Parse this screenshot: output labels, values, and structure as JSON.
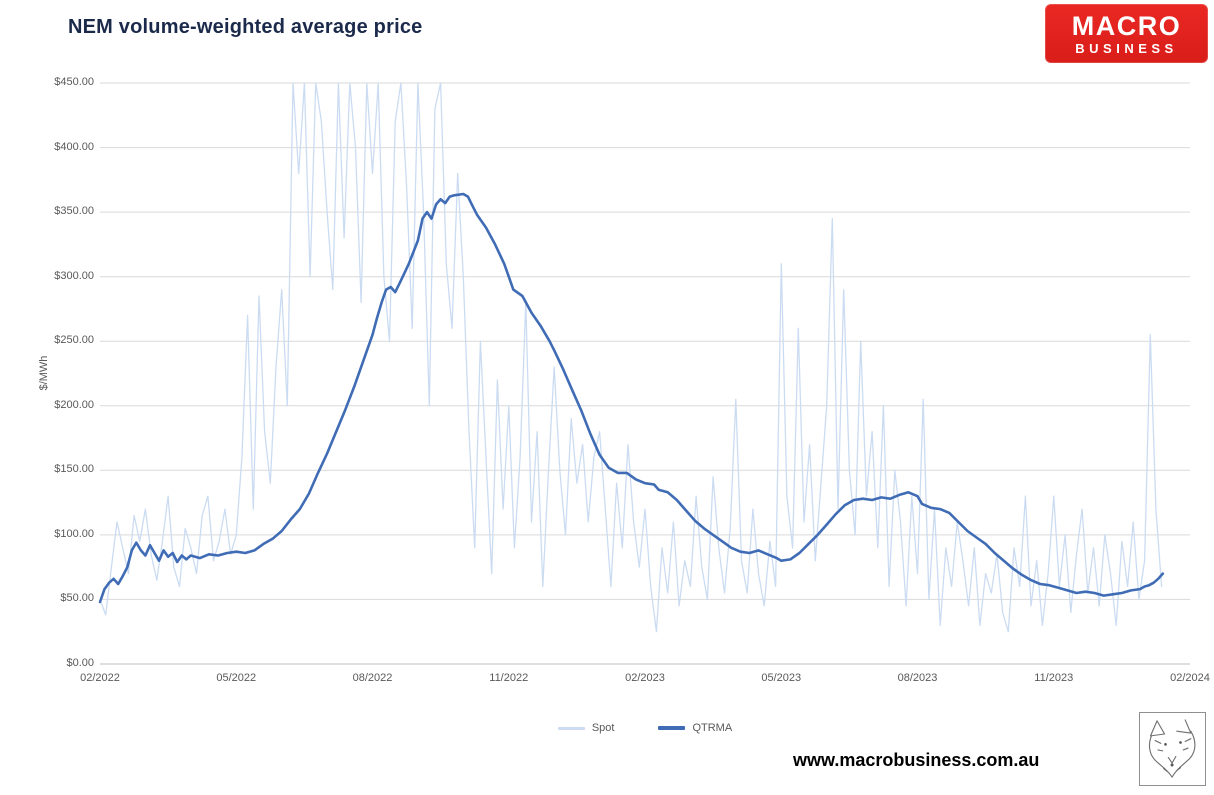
{
  "header": {
    "title": "NEM volume-weighted average price"
  },
  "logo": {
    "line1": "MACRO",
    "line2": "BUSINESS",
    "background": "#E3211C",
    "text_color": "#FFFFFF"
  },
  "footer": {
    "url": "www.macrobusiness.com.au"
  },
  "colors": {
    "title": "#1B2A4B",
    "axis_text": "#595959",
    "gridline": "#D9D9D9",
    "axis_line": "#BFBFBF",
    "spot": "#CBDCF2",
    "qtrma": "#3F6CB5",
    "logo_red": "#E3211C"
  },
  "legend": {
    "items": [
      {
        "label": "Spot",
        "color": "#CBDCF2",
        "swatch_height": 3
      },
      {
        "label": "QTRMA",
        "color": "#3F6CB5",
        "swatch_height": 4
      }
    ]
  },
  "chart_data": {
    "type": "line",
    "title": "NEM volume-weighted average price",
    "xlabel": "",
    "ylabel": "$/MWh",
    "ylim": [
      0,
      450
    ],
    "ytick_interval": 50,
    "ytick_labels": [
      "$0.00",
      "$50.00",
      "$100.00",
      "$150.00",
      "$200.00",
      "$250.00",
      "$300.00",
      "$350.00",
      "$400.00",
      "$450.00"
    ],
    "xtick_labels": [
      "02/2022",
      "05/2022",
      "08/2022",
      "11/2022",
      "02/2023",
      "05/2023",
      "08/2023",
      "11/2023",
      "02/2024"
    ],
    "xtick_month_positions": [
      0,
      3,
      6,
      9,
      12,
      15,
      18,
      21,
      24
    ],
    "x_unit": "months since 2022-02",
    "x_range_months": [
      0,
      24
    ],
    "grid": "horizontal",
    "legend_position": "bottom",
    "series": [
      {
        "name": "Spot",
        "color": "#CBDCF2",
        "stroke_width": 1.3,
        "x_start": 0,
        "x_step": 0.125,
        "clip_max": 450,
        "values": [
          50,
          38,
          75,
          110,
          90,
          70,
          115,
          95,
          120,
          85,
          65,
          95,
          130,
          75,
          60,
          105,
          90,
          70,
          115,
          130,
          80,
          95,
          120,
          85,
          100,
          160,
          270,
          120,
          285,
          180,
          140,
          230,
          290,
          200,
          450,
          380,
          450,
          300,
          450,
          420,
          350,
          290,
          450,
          330,
          450,
          400,
          280,
          450,
          380,
          450,
          300,
          250,
          420,
          450,
          370,
          260,
          450,
          350,
          200,
          430,
          450,
          310,
          260,
          380,
          300,
          180,
          90,
          250,
          160,
          70,
          220,
          120,
          200,
          90,
          160,
          280,
          110,
          180,
          60,
          150,
          230,
          150,
          100,
          190,
          140,
          170,
          110,
          160,
          180,
          120,
          60,
          140,
          90,
          170,
          110,
          75,
          120,
          60,
          25,
          90,
          55,
          110,
          45,
          80,
          60,
          130,
          75,
          50,
          145,
          90,
          55,
          105,
          205,
          80,
          55,
          120,
          70,
          45,
          95,
          60,
          310,
          130,
          90,
          260,
          110,
          170,
          80,
          140,
          200,
          345,
          120,
          290,
          150,
          100,
          250,
          130,
          180,
          90,
          200,
          60,
          150,
          110,
          45,
          130,
          70,
          205,
          50,
          120,
          30,
          90,
          60,
          110,
          80,
          45,
          90,
          30,
          70,
          55,
          85,
          40,
          25,
          90,
          60,
          130,
          45,
          80,
          30,
          70,
          130,
          60,
          100,
          40,
          85,
          120,
          55,
          90,
          45,
          100,
          70,
          30,
          95,
          60,
          110,
          50,
          80,
          255,
          120,
          60
        ]
      },
      {
        "name": "QTRMA",
        "color": "#3F6CB5",
        "stroke_width": 2.6,
        "points": [
          [
            0,
            48
          ],
          [
            0.1,
            58
          ],
          [
            0.2,
            63
          ],
          [
            0.3,
            66
          ],
          [
            0.4,
            62
          ],
          [
            0.5,
            68
          ],
          [
            0.6,
            75
          ],
          [
            0.7,
            88
          ],
          [
            0.8,
            94
          ],
          [
            0.9,
            88
          ],
          [
            1,
            84
          ],
          [
            1.1,
            92
          ],
          [
            1.2,
            86
          ],
          [
            1.3,
            80
          ],
          [
            1.4,
            88
          ],
          [
            1.5,
            83
          ],
          [
            1.6,
            86
          ],
          [
            1.7,
            79
          ],
          [
            1.8,
            84
          ],
          [
            1.9,
            81
          ],
          [
            2,
            84
          ],
          [
            2.2,
            82
          ],
          [
            2.4,
            85
          ],
          [
            2.6,
            84
          ],
          [
            2.8,
            86
          ],
          [
            3,
            87
          ],
          [
            3.2,
            86
          ],
          [
            3.4,
            88
          ],
          [
            3.6,
            93
          ],
          [
            3.8,
            97
          ],
          [
            4,
            103
          ],
          [
            4.2,
            112
          ],
          [
            4.4,
            120
          ],
          [
            4.6,
            132
          ],
          [
            4.8,
            148
          ],
          [
            5,
            163
          ],
          [
            5.2,
            180
          ],
          [
            5.4,
            197
          ],
          [
            5.6,
            215
          ],
          [
            5.8,
            235
          ],
          [
            6,
            255
          ],
          [
            6.1,
            268
          ],
          [
            6.2,
            280
          ],
          [
            6.3,
            290
          ],
          [
            6.4,
            292
          ],
          [
            6.5,
            288
          ],
          [
            6.6,
            295
          ],
          [
            6.8,
            310
          ],
          [
            7,
            328
          ],
          [
            7.1,
            345
          ],
          [
            7.2,
            350
          ],
          [
            7.3,
            345
          ],
          [
            7.4,
            356
          ],
          [
            7.5,
            360
          ],
          [
            7.6,
            357
          ],
          [
            7.7,
            362
          ],
          [
            7.8,
            363
          ],
          [
            8,
            364
          ],
          [
            8.1,
            362
          ],
          [
            8.2,
            355
          ],
          [
            8.3,
            348
          ],
          [
            8.5,
            338
          ],
          [
            8.7,
            325
          ],
          [
            8.9,
            310
          ],
          [
            9,
            300
          ],
          [
            9.1,
            290
          ],
          [
            9.3,
            285
          ],
          [
            9.5,
            272
          ],
          [
            9.7,
            262
          ],
          [
            9.9,
            250
          ],
          [
            10,
            243
          ],
          [
            10.2,
            228
          ],
          [
            10.4,
            212
          ],
          [
            10.6,
            196
          ],
          [
            10.8,
            178
          ],
          [
            11,
            162
          ],
          [
            11.2,
            152
          ],
          [
            11.4,
            148
          ],
          [
            11.6,
            148
          ],
          [
            11.8,
            143
          ],
          [
            12,
            140
          ],
          [
            12.2,
            139
          ],
          [
            12.3,
            135
          ],
          [
            12.5,
            133
          ],
          [
            12.7,
            127
          ],
          [
            12.9,
            119
          ],
          [
            13.1,
            111
          ],
          [
            13.3,
            105
          ],
          [
            13.5,
            100
          ],
          [
            13.7,
            95
          ],
          [
            13.9,
            90
          ],
          [
            14.1,
            87
          ],
          [
            14.3,
            86
          ],
          [
            14.5,
            88
          ],
          [
            14.7,
            85
          ],
          [
            14.9,
            82
          ],
          [
            15,
            80
          ],
          [
            15.2,
            81
          ],
          [
            15.4,
            86
          ],
          [
            15.6,
            93
          ],
          [
            15.8,
            100
          ],
          [
            16,
            108
          ],
          [
            16.2,
            116
          ],
          [
            16.4,
            123
          ],
          [
            16.6,
            127
          ],
          [
            16.8,
            128
          ],
          [
            17,
            127
          ],
          [
            17.2,
            129
          ],
          [
            17.4,
            128
          ],
          [
            17.6,
            131
          ],
          [
            17.8,
            133
          ],
          [
            18,
            130
          ],
          [
            18.1,
            124
          ],
          [
            18.3,
            121
          ],
          [
            18.5,
            120
          ],
          [
            18.7,
            117
          ],
          [
            18.9,
            110
          ],
          [
            19.1,
            103
          ],
          [
            19.3,
            98
          ],
          [
            19.5,
            93
          ],
          [
            19.7,
            86
          ],
          [
            19.9,
            80
          ],
          [
            20.1,
            74
          ],
          [
            20.3,
            69
          ],
          [
            20.5,
            65
          ],
          [
            20.7,
            62
          ],
          [
            20.9,
            61
          ],
          [
            21.1,
            59
          ],
          [
            21.3,
            57
          ],
          [
            21.5,
            55
          ],
          [
            21.7,
            56
          ],
          [
            21.9,
            55
          ],
          [
            22.1,
            53
          ],
          [
            22.3,
            54
          ],
          [
            22.5,
            55
          ],
          [
            22.7,
            57
          ],
          [
            22.9,
            58
          ],
          [
            23,
            60
          ],
          [
            23.1,
            61
          ],
          [
            23.2,
            63
          ],
          [
            23.3,
            66
          ],
          [
            23.4,
            70
          ]
        ]
      }
    ]
  }
}
